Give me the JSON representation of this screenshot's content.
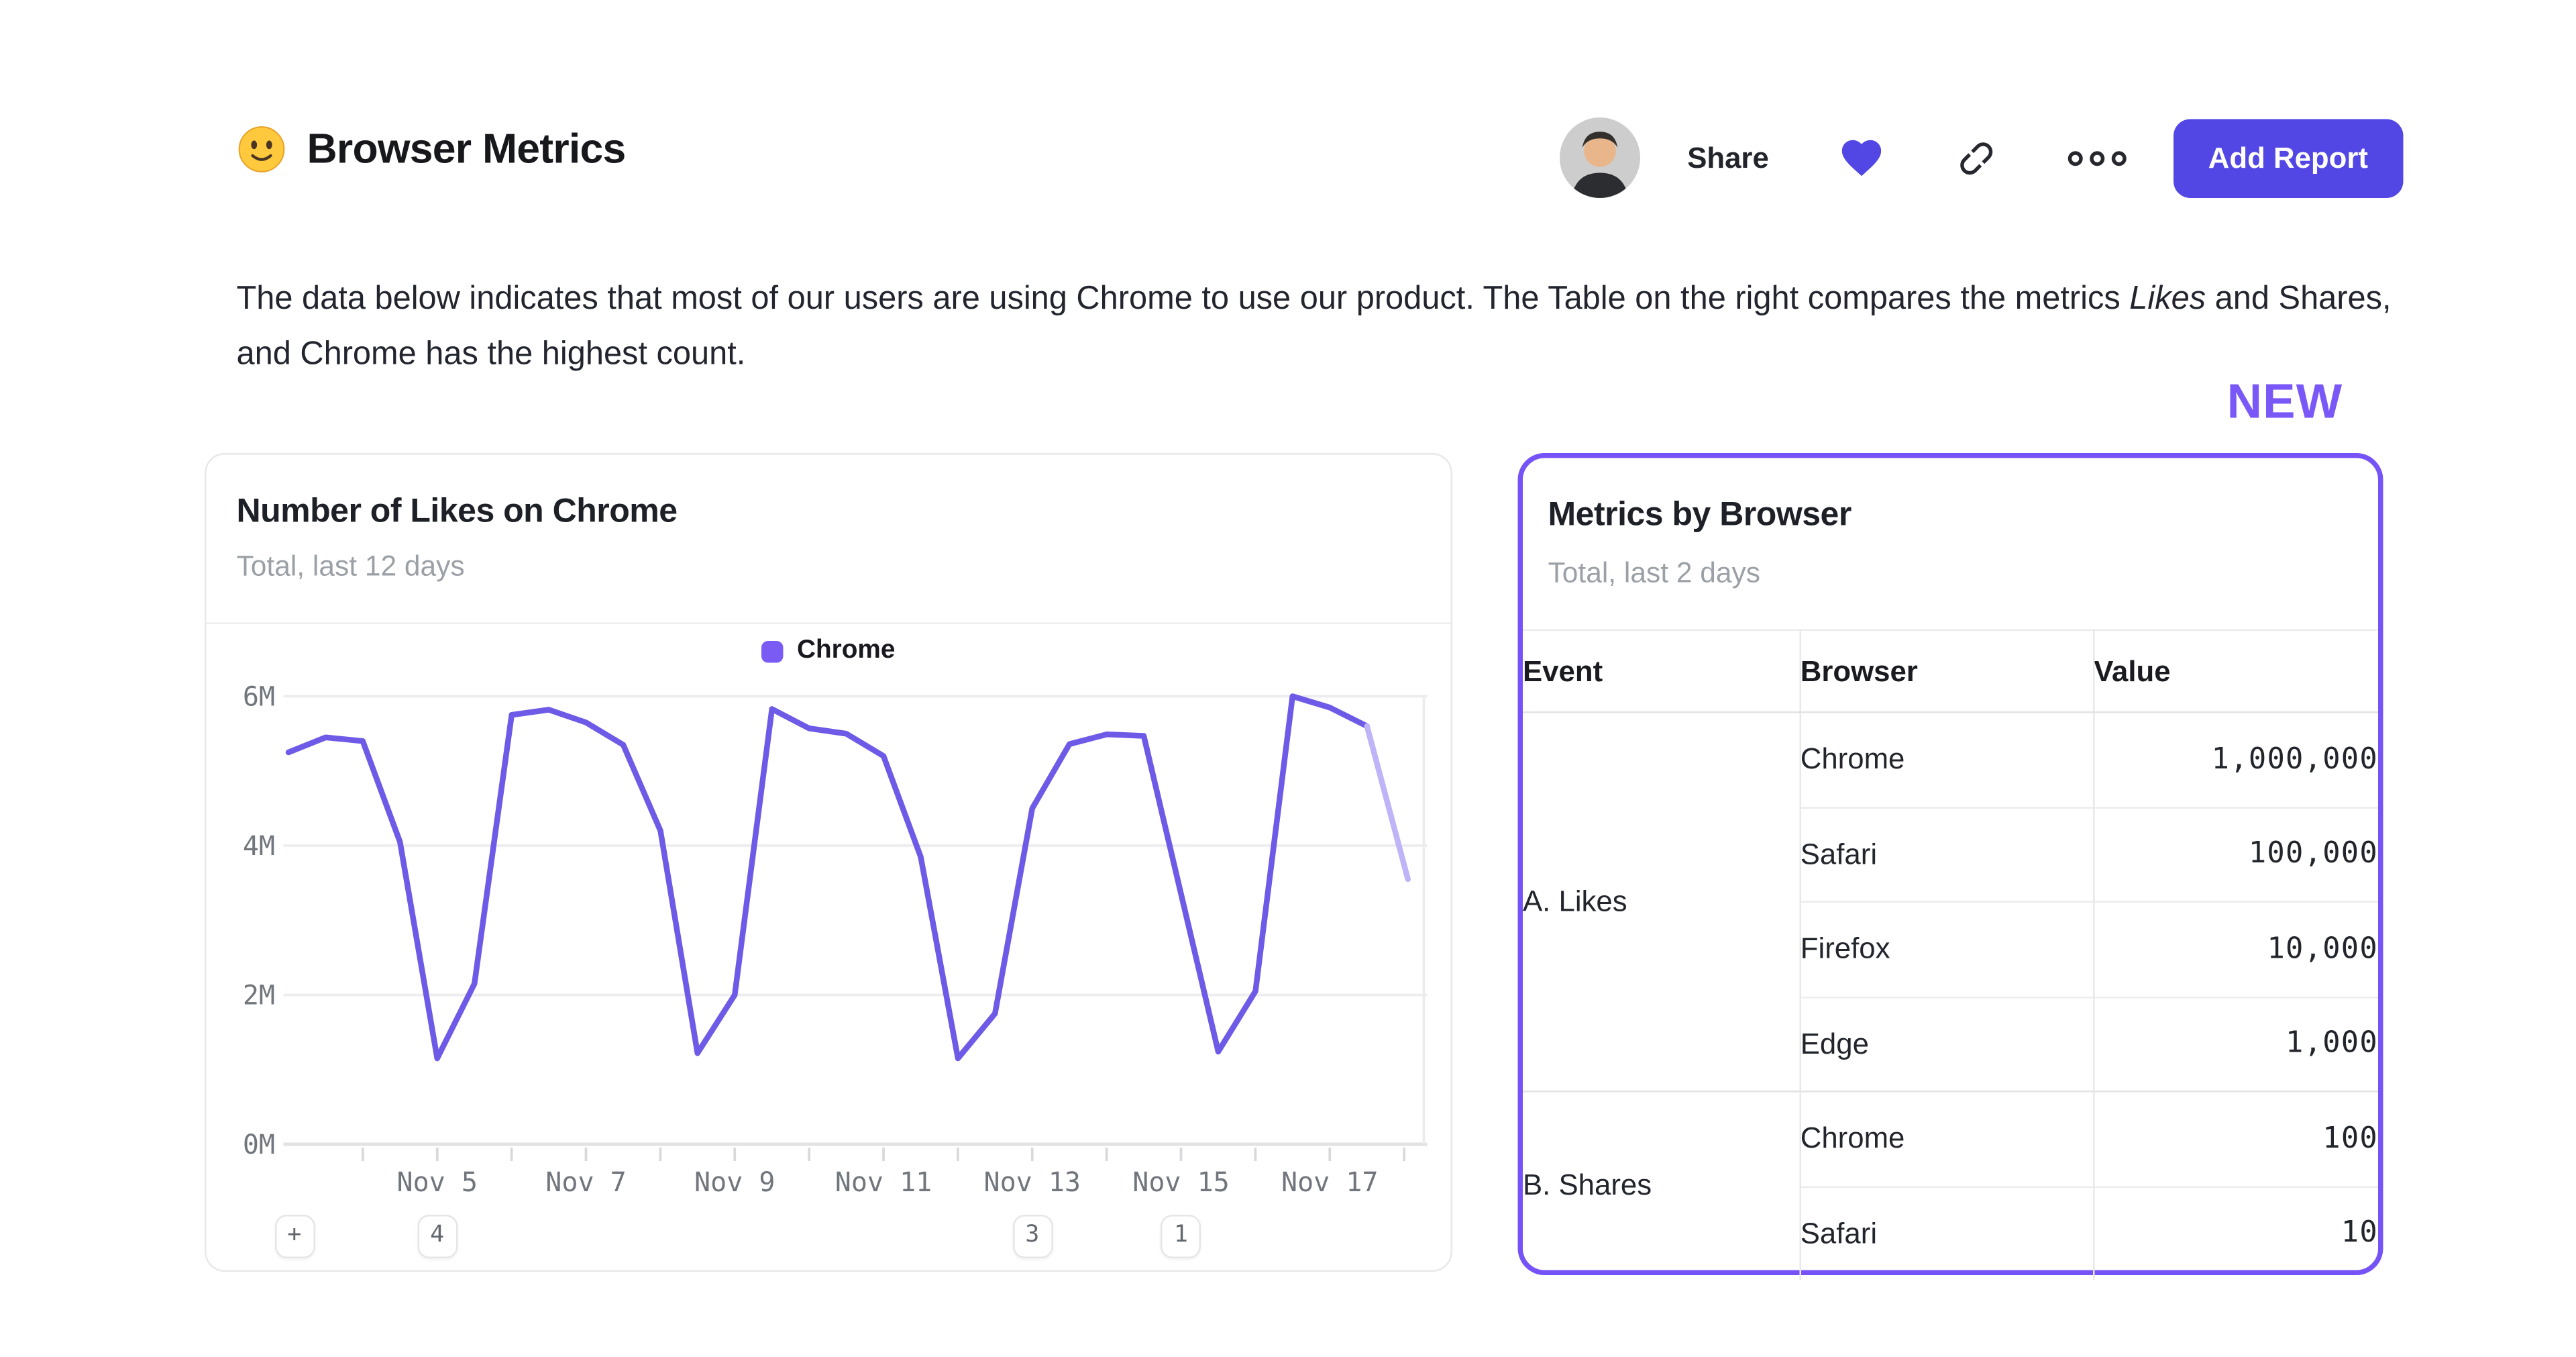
{
  "header": {
    "emoji_icon": "slightly-smiling-face",
    "title": "Browser Metrics",
    "share_label": "Share",
    "add_report_label": "Add Report",
    "icon_names": [
      "user-avatar",
      "heart-icon",
      "link-icon",
      "more-options-icon"
    ]
  },
  "intro": {
    "text_before_italic": "The data below indicates that most of our users are using Chrome to use our product. The Table on the right compares the metrics ",
    "italic_word": "Likes",
    "text_after_italic": " and Shares, and Chrome has the highest count."
  },
  "new_badge_label": "NEW",
  "colors": {
    "accent_indigo": "#5246e5",
    "accent_purple": "#7a58f8",
    "line_purple": "#6d5ae6",
    "line_purple_faded": "#c0b4f8",
    "legend_swatch": "#7a5cf5",
    "axis_text_gray": "#71757c",
    "subtitle_gray": "#9ba0a7"
  },
  "chart_card": {
    "title": "Number of Likes on Chrome",
    "subtitle": "Total, last 12 days",
    "legend": [
      {
        "name": "Chrome",
        "color": "#7a5cf5"
      }
    ]
  },
  "chart_data": {
    "type": "line",
    "title": "Number of Likes on Chrome",
    "subtitle": "Total, last 12 days",
    "legend_position": "top-center",
    "grid": true,
    "x_unit": "day of November",
    "y_unit": "likes (millions)",
    "xlim": [
      3,
      18.3
    ],
    "ylim": [
      0,
      6.2
    ],
    "series": [
      {
        "name": "Chrome",
        "color": "#6d5ae6",
        "x": [
          3,
          3.5,
          4,
          4.5,
          5,
          5.5,
          6,
          6.5,
          7,
          7.5,
          8,
          8.5,
          9,
          9.5,
          10,
          10.5,
          11,
          11.5,
          12,
          12.5,
          13,
          13.5,
          14,
          14.5,
          15.5,
          16,
          16.5,
          17,
          17.5
        ],
        "y_millions": [
          5.25,
          5.45,
          5.4,
          4.05,
          1.15,
          2.15,
          5.75,
          5.82,
          5.65,
          5.35,
          4.2,
          1.22,
          2.0,
          5.83,
          5.57,
          5.5,
          5.2,
          3.85,
          1.15,
          1.75,
          4.5,
          5.36,
          5.49,
          5.47,
          1.24,
          2.05,
          6.0,
          5.85,
          5.6
        ]
      }
    ],
    "incomplete_tail": {
      "color": "#c0b4f8",
      "x": [
        17.5,
        18.05
      ],
      "y_millions": [
        5.6,
        3.55
      ]
    },
    "x_ticks": [
      {
        "x": 5,
        "label": "Nov 5"
      },
      {
        "x": 7,
        "label": "Nov 7"
      },
      {
        "x": 9,
        "label": "Nov 9"
      },
      {
        "x": 11,
        "label": "Nov 11"
      },
      {
        "x": 13,
        "label": "Nov 13"
      },
      {
        "x": 15,
        "label": "Nov 15"
      },
      {
        "x": 17,
        "label": "Nov 17"
      }
    ],
    "x_minor_ticks": [
      4,
      5,
      6,
      7,
      8,
      9,
      10,
      11,
      12,
      13,
      14,
      15,
      16,
      17,
      18
    ],
    "y_ticks": [
      {
        "v": 0,
        "label": "0M"
      },
      {
        "v": 2,
        "label": "2M"
      },
      {
        "v": 4,
        "label": "4M"
      },
      {
        "v": 6,
        "label": "6M"
      }
    ],
    "annotations": [
      {
        "label": "+",
        "x": null,
        "kind": "add-annotation"
      },
      {
        "label": "4",
        "x": 5,
        "kind": "annotation-count"
      },
      {
        "label": "3",
        "x": 13,
        "kind": "annotation-count"
      },
      {
        "label": "1",
        "x": 15,
        "kind": "annotation-count"
      }
    ]
  },
  "table_card": {
    "title": "Metrics by Browser",
    "subtitle": "Total, last 2 days",
    "columns": [
      "Event",
      "Browser",
      "Value"
    ],
    "groups": [
      {
        "event": "A. Likes",
        "rows": [
          {
            "browser": "Chrome",
            "value": "1,000,000"
          },
          {
            "browser": "Safari",
            "value": "100,000"
          },
          {
            "browser": "Firefox",
            "value": "10,000"
          },
          {
            "browser": "Edge",
            "value": "1,000"
          }
        ]
      },
      {
        "event": "B. Shares",
        "rows": [
          {
            "browser": "Chrome",
            "value": "100"
          },
          {
            "browser": "Safari",
            "value": "10"
          }
        ]
      }
    ]
  }
}
